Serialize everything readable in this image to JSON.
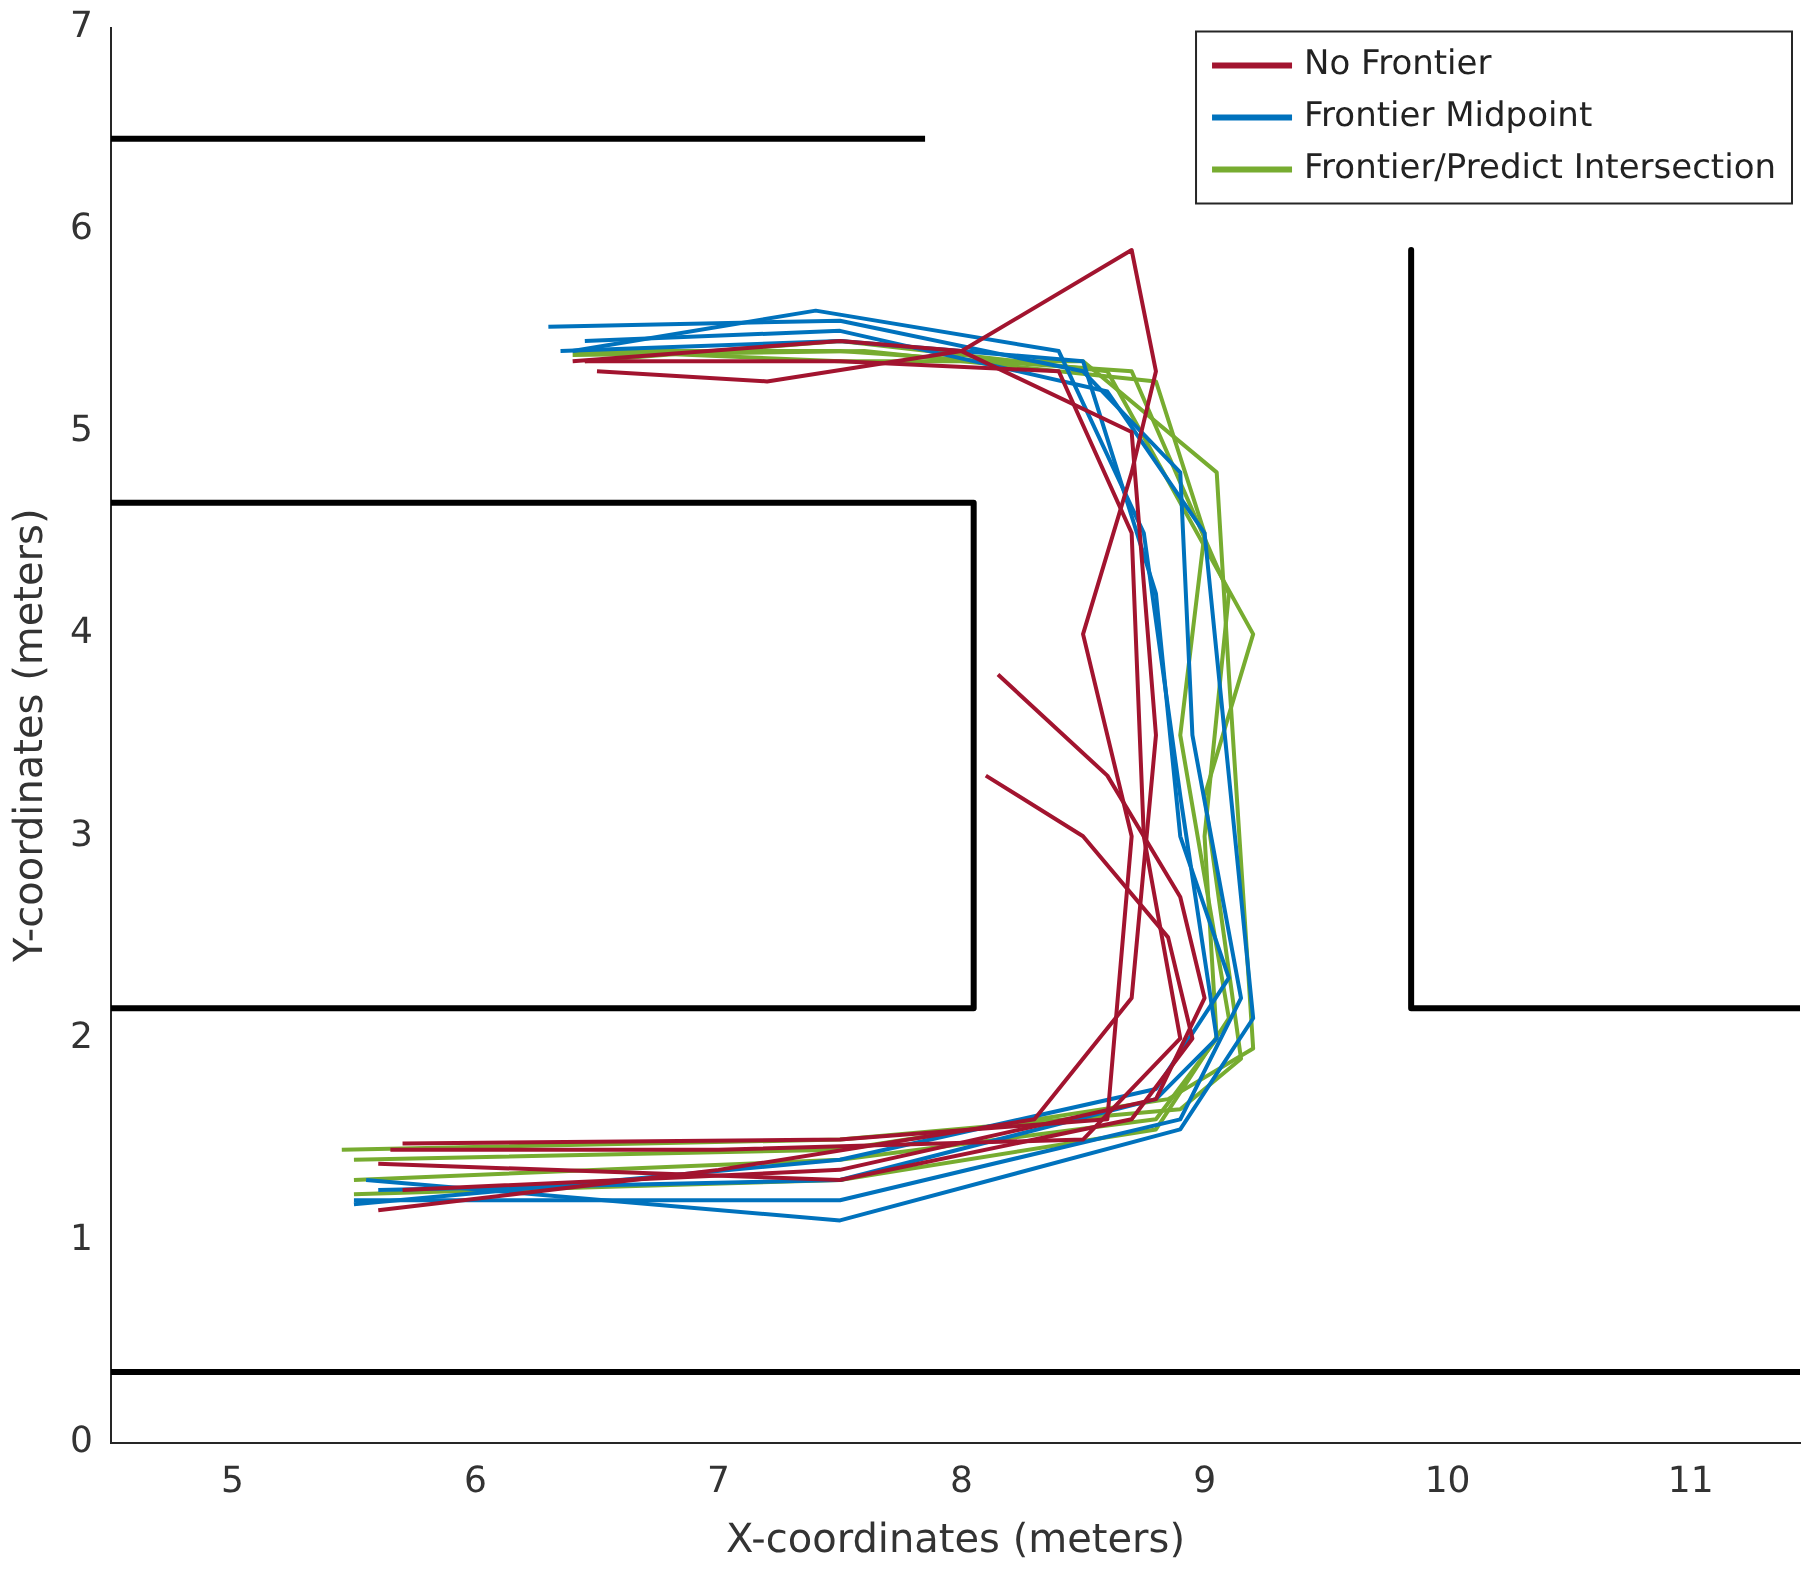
{
  "chart_data": {
    "type": "line",
    "xlabel": "X-coordinates (meters)",
    "ylabel": "Y-coordinates (meters)",
    "xlim": [
      4.5,
      11.45
    ],
    "ylim": [
      0,
      7
    ],
    "xticks": [
      5,
      6,
      7,
      8,
      9,
      10,
      11
    ],
    "yticks": [
      0,
      1,
      2,
      3,
      4,
      5,
      6,
      7
    ],
    "grid": false,
    "legend": "top right",
    "marker": "none",
    "line_style": "solid",
    "series": [
      {
        "color": "#000000",
        "x": [
          4.5,
          7.85
        ],
        "values": [
          6.45,
          6.45
        ]
      },
      {
        "color": "#000000",
        "x": [
          9.85,
          9.85,
          11.45
        ],
        "values": [
          5.9,
          2.15,
          2.15
        ]
      },
      {
        "color": "#000000",
        "x": [
          4.5,
          8.05,
          8.05,
          4.5
        ],
        "values": [
          4.65,
          4.65,
          2.15,
          2.15
        ]
      },
      {
        "color": "#000000",
        "x": [
          4.5,
          11.45
        ],
        "values": [
          0.35,
          0.35
        ]
      },
      {
        "name": "No Frontier",
        "color": "#a2142f",
        "x": [
          6.45,
          7.5,
          8.4,
          8.7,
          8.75,
          8.9,
          8.5,
          7.0,
          5.65
        ],
        "values": [
          5.35,
          5.35,
          5.3,
          4.5,
          3.0,
          2.0,
          1.5,
          1.45,
          1.45
        ]
      },
      {
        "color": "#a2142f",
        "x": [
          6.5,
          7.2,
          8.0,
          8.7,
          8.8,
          8.7,
          8.3,
          7.0,
          5.6
        ],
        "values": [
          5.3,
          5.25,
          5.4,
          5.0,
          3.5,
          2.2,
          1.6,
          1.35,
          1.15
        ]
      },
      {
        "color": "#a2142f",
        "x": [
          8.15,
          8.6,
          8.9,
          9.0,
          8.8,
          7.5,
          5.7
        ],
        "values": [
          3.8,
          3.3,
          2.7,
          2.2,
          1.7,
          1.35,
          1.25
        ]
      },
      {
        "color": "#a2142f",
        "x": [
          8.1,
          8.5,
          8.85,
          8.95,
          8.7,
          7.5,
          5.6
        ],
        "values": [
          3.3,
          3.0,
          2.5,
          2.0,
          1.6,
          1.3,
          1.38
        ]
      },
      {
        "color": "#a2142f",
        "x": [
          6.4,
          7.5,
          8.0,
          8.7,
          8.8,
          8.7,
          8.5,
          8.7,
          8.6,
          7.5,
          5.7
        ],
        "values": [
          5.35,
          5.45,
          5.4,
          5.9,
          5.3,
          4.8,
          4.0,
          3.0,
          1.6,
          1.5,
          1.48
        ]
      },
      {
        "name": "Frontier Midpoint",
        "color": "#0072bd",
        "x": [
          6.3,
          7.5,
          8.5,
          8.9,
          8.95,
          9.15,
          8.9,
          7.5,
          5.5
        ],
        "values": [
          5.52,
          5.55,
          5.3,
          4.8,
          3.5,
          2.2,
          1.6,
          1.2,
          1.2
        ]
      },
      {
        "color": "#0072bd",
        "x": [
          6.4,
          7.4,
          8.4,
          8.75,
          8.9,
          9.05,
          8.8,
          7.5,
          5.6
        ],
        "values": [
          5.4,
          5.6,
          5.4,
          4.5,
          3.2,
          2.0,
          1.7,
          1.3,
          1.25
        ]
      },
      {
        "color": "#0072bd",
        "x": [
          6.45,
          7.5,
          8.6,
          9.0,
          9.1,
          9.2,
          8.9,
          7.5,
          5.55
        ],
        "values": [
          5.45,
          5.5,
          5.2,
          4.5,
          3.3,
          2.1,
          1.55,
          1.1,
          1.3
        ]
      },
      {
        "color": "#0072bd",
        "x": [
          6.35,
          7.5,
          8.5,
          8.8,
          8.9,
          9.1,
          8.8,
          7.5,
          5.5
        ],
        "values": [
          5.4,
          5.45,
          5.35,
          4.2,
          3.0,
          2.3,
          1.75,
          1.4,
          1.18
        ]
      },
      {
        "name": "Frontier/Predict Intersection",
        "color": "#77ac30",
        "x": [
          6.4,
          7.5,
          8.7,
          9.1,
          9.0,
          9.05,
          8.8,
          7.5,
          5.5
        ],
        "values": [
          5.4,
          5.4,
          5.3,
          4.2,
          3.0,
          2.0,
          1.6,
          1.4,
          1.3
        ]
      },
      {
        "color": "#77ac30",
        "x": [
          6.45,
          7.5,
          8.6,
          9.2,
          9.0,
          9.15,
          8.9,
          7.5,
          5.45
        ],
        "values": [
          5.35,
          5.45,
          5.3,
          4.0,
          3.2,
          1.9,
          1.65,
          1.5,
          1.45
        ]
      },
      {
        "color": "#77ac30",
        "x": [
          6.4,
          7.6,
          8.8,
          9.0,
          8.9,
          9.1,
          8.8,
          7.5,
          5.5
        ],
        "values": [
          5.38,
          5.4,
          5.25,
          4.5,
          3.5,
          2.1,
          1.55,
          1.3,
          1.23
        ]
      },
      {
        "color": "#77ac30",
        "x": [
          6.5,
          7.5,
          8.5,
          9.05,
          9.1,
          9.2,
          8.85,
          7.5,
          5.5
        ],
        "values": [
          5.4,
          5.35,
          5.35,
          4.8,
          3.8,
          1.95,
          1.7,
          1.45,
          1.4
        ]
      }
    ]
  }
}
